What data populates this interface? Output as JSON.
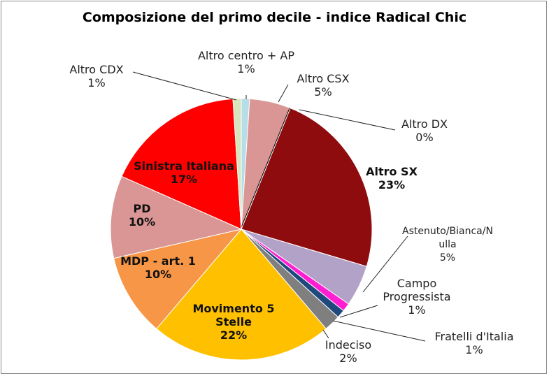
{
  "chart_data": {
    "type": "pie",
    "title": "Composizione del primo decile - indice Radical Chic",
    "categories": [
      "Altro centro + AP",
      "Altro CSX",
      "Altro DX",
      "Altro SX",
      "Astenuto/Bianca/Nulla",
      "Campo Progressista",
      "Fratelli d'Italia",
      "Indeciso",
      "Movimento 5 Stelle",
      "MDP - art. 1",
      "PD",
      "Sinistra Italiana",
      "Altro CDX"
    ],
    "values": [
      1,
      5,
      0,
      23,
      5,
      1,
      1,
      2,
      22,
      10,
      10,
      17,
      1
    ],
    "value_labels": [
      "1%",
      "5%",
      "0%",
      "23%",
      "5%",
      "1%",
      "1%",
      "2%",
      "22%",
      "10%",
      "10%",
      "17%",
      "1%"
    ],
    "colors": [
      "#b7dde8",
      "#d99694",
      "#000000",
      "#8e0c0e",
      "#b3a2c7",
      "#ff1ed2",
      "#1f497d",
      "#7f7f7f",
      "#ffc000",
      "#f79646",
      "#d99694",
      "#ff0000",
      "#d7e4bc"
    ]
  }
}
